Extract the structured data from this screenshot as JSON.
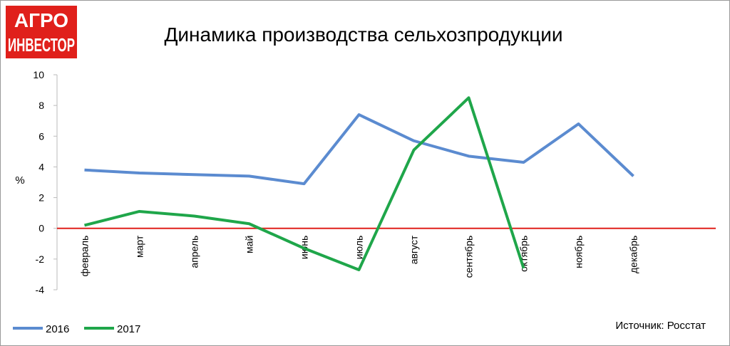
{
  "logo": {
    "lines": [
      "АГРО",
      "ИНВЕСТОР"
    ]
  },
  "chart_data": {
    "type": "line",
    "title": "Динамика производства сельхозпродукции",
    "y_label": "%",
    "source": "Источник: Росстат",
    "categories": [
      "февраль",
      "март",
      "апрель",
      "май",
      "июнь",
      "июль",
      "август",
      "сентябрь",
      "октябрь",
      "ноябрь",
      "декабрь",
      null
    ],
    "series": [
      {
        "name": "2016",
        "color": "#5b8bd0",
        "values": [
          3.8,
          3.6,
          3.5,
          3.4,
          2.9,
          7.4,
          5.7,
          4.7,
          4.3,
          6.8,
          3.4,
          null
        ]
      },
      {
        "name": "2017",
        "color": "#1fa64a",
        "values": [
          0.2,
          1.1,
          0.8,
          0.3,
          -1.3,
          -2.7,
          5.1,
          8.5,
          -2.6,
          null,
          null,
          null
        ]
      }
    ],
    "ylim": [
      -4,
      10
    ],
    "yticks": [
      -4,
      -2,
      0,
      2,
      4,
      6,
      8,
      10
    ],
    "zero_line_color": "#e0201b",
    "legend": "bottom-left"
  }
}
